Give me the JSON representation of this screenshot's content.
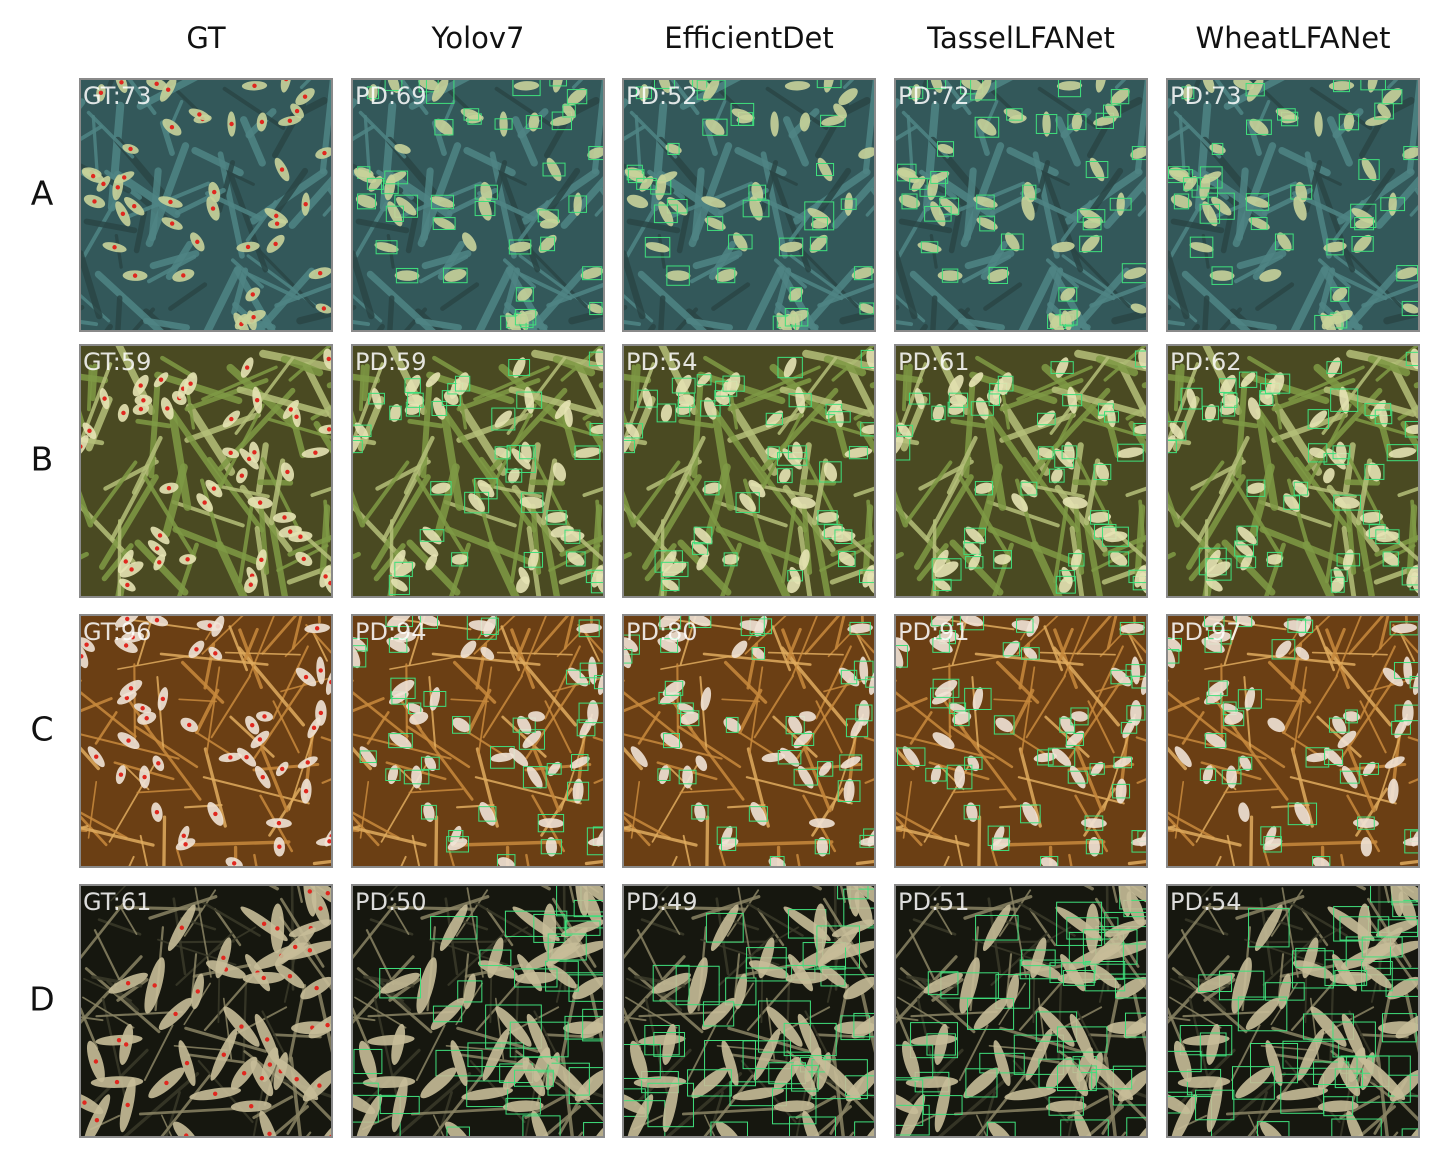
{
  "columns": [
    "GT",
    "Yolov7",
    "EfficientDet",
    "TasselLFANet",
    "WheatLFANet"
  ],
  "rows": [
    {
      "label": "A",
      "cells": [
        "GT:73",
        "PD:69",
        "PD:52",
        "PD:72",
        "PD:73"
      ]
    },
    {
      "label": "B",
      "cells": [
        "GT:59",
        "PD:59",
        "PD:54",
        "PD:61",
        "PD:62"
      ]
    },
    {
      "label": "C",
      "cells": [
        "GT:96",
        "PD:94",
        "PD:80",
        "PD:91",
        "PD:97"
      ]
    },
    {
      "label": "D",
      "cells": [
        "GT:61",
        "PD:50",
        "PD:49",
        "PD:51",
        "PD:54"
      ]
    }
  ]
}
